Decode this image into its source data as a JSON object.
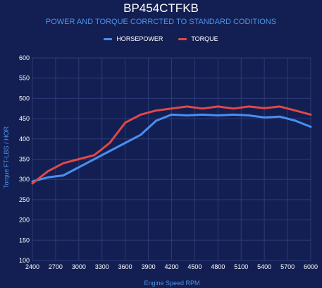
{
  "chart_data": {
    "type": "line",
    "title": "BP454CTFKB",
    "subtitle": "POWER AND TORQUE CORRCTED TO STANDARD CODITIONS",
    "xlabel": "Engine Speed RPM",
    "ylabel": "Torque FT-LBS / HOR",
    "legend_position": "top-center",
    "grid": true,
    "xlim": [
      2400,
      6000
    ],
    "ylim": [
      100,
      600
    ],
    "x_ticks": [
      "2400",
      "2700",
      "3000",
      "3300",
      "3600",
      "3900",
      "4200",
      "4500",
      "4800",
      "5100",
      "5400",
      "5700",
      "6000"
    ],
    "y_ticks": [
      "100",
      "150",
      "200",
      "250",
      "300",
      "350",
      "400",
      "450",
      "500",
      "550",
      "600"
    ],
    "x": [
      2400,
      2600,
      2800,
      3000,
      3200,
      3400,
      3600,
      3800,
      4000,
      4200,
      4400,
      4600,
      4800,
      5000,
      5200,
      5400,
      5600,
      5800,
      6000
    ],
    "series": [
      {
        "name": "HORSEPOWER",
        "color": "#4a8ff0",
        "values": [
          295,
          305,
          310,
          330,
          350,
          370,
          390,
          410,
          445,
          460,
          458,
          460,
          458,
          460,
          458,
          453,
          455,
          445,
          430
        ]
      },
      {
        "name": "TORQUE",
        "color": "#e04848",
        "values": [
          290,
          320,
          340,
          350,
          360,
          390,
          440,
          460,
          470,
          475,
          480,
          475,
          480,
          475,
          480,
          476,
          480,
          470,
          460
        ]
      }
    ]
  }
}
